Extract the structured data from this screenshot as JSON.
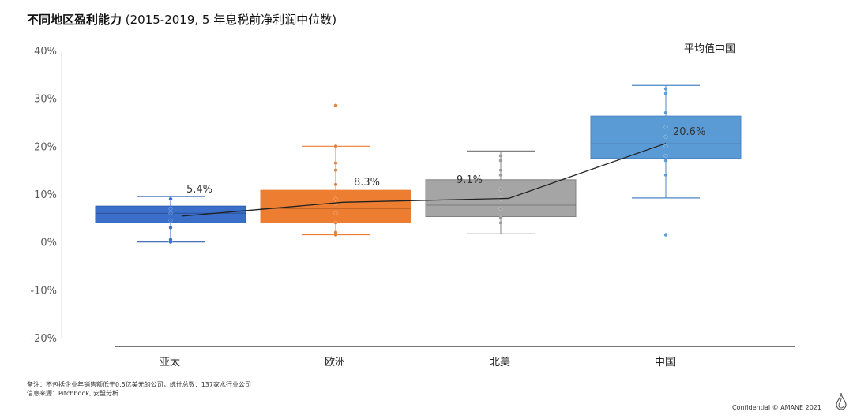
{
  "title": {
    "bold": "不同地区盈利能力",
    "rest": " (2015-2019, 5 年息税前净利润中位数)"
  },
  "legend_note": "平均值中国",
  "notes": {
    "line1": "备注：不包括企业年销售额低于0.5亿美元的公司，统计总数：137家水行业公司",
    "line2": "信息来源：Pitchbook, 安盟分析"
  },
  "footer": "Confidential © AMANE 2021",
  "chart_data": {
    "type": "box",
    "categories": [
      "亚太",
      "欧洲",
      "北美",
      "中国"
    ],
    "ylim": [
      -0.2,
      0.4
    ],
    "yticks": [
      -0.2,
      -0.1,
      0,
      0.1,
      0.2,
      0.3,
      0.4
    ],
    "ytick_labels": [
      "-20%",
      "-10%",
      "0%",
      "10%",
      "20%",
      "30%",
      "40%"
    ],
    "colors": [
      "#3a6ec9",
      "#ed7d31",
      "#a5a5a5",
      "#5b9bd5"
    ],
    "point_colors": [
      "#3a6ec9",
      "#ed7d31",
      "#9a9a9a",
      "#5b9bd5"
    ],
    "boxes": [
      {
        "min": 0.0,
        "q1": 0.04,
        "median": 0.06,
        "q3": 0.075,
        "max": 0.095
      },
      {
        "min": 0.015,
        "q1": 0.04,
        "median": 0.07,
        "q3": 0.108,
        "max": 0.2
      },
      {
        "min": 0.017,
        "q1": 0.053,
        "median": 0.077,
        "q3": 0.13,
        "max": 0.19
      },
      {
        "min": 0.092,
        "q1": 0.175,
        "median": 0.205,
        "q3": 0.263,
        "max": 0.327
      }
    ],
    "points": [
      [
        0.0,
        0.005,
        0.03,
        0.045,
        0.06,
        0.07,
        0.09
      ],
      [
        0.015,
        0.02,
        0.04,
        0.06,
        0.08,
        0.09,
        0.12,
        0.15,
        0.165,
        0.2,
        0.285
      ],
      [
        0.04,
        0.05,
        0.07,
        0.09,
        0.11,
        0.14,
        0.15,
        0.17,
        0.18
      ],
      [
        0.015,
        0.14,
        0.17,
        0.18,
        0.2,
        0.22,
        0.24,
        0.27,
        0.31,
        0.32
      ]
    ],
    "means": [
      0.054,
      0.083,
      0.091,
      0.206
    ],
    "mean_labels": [
      "5.4%",
      "8.3%",
      "9.1%",
      "20.6%"
    ]
  }
}
